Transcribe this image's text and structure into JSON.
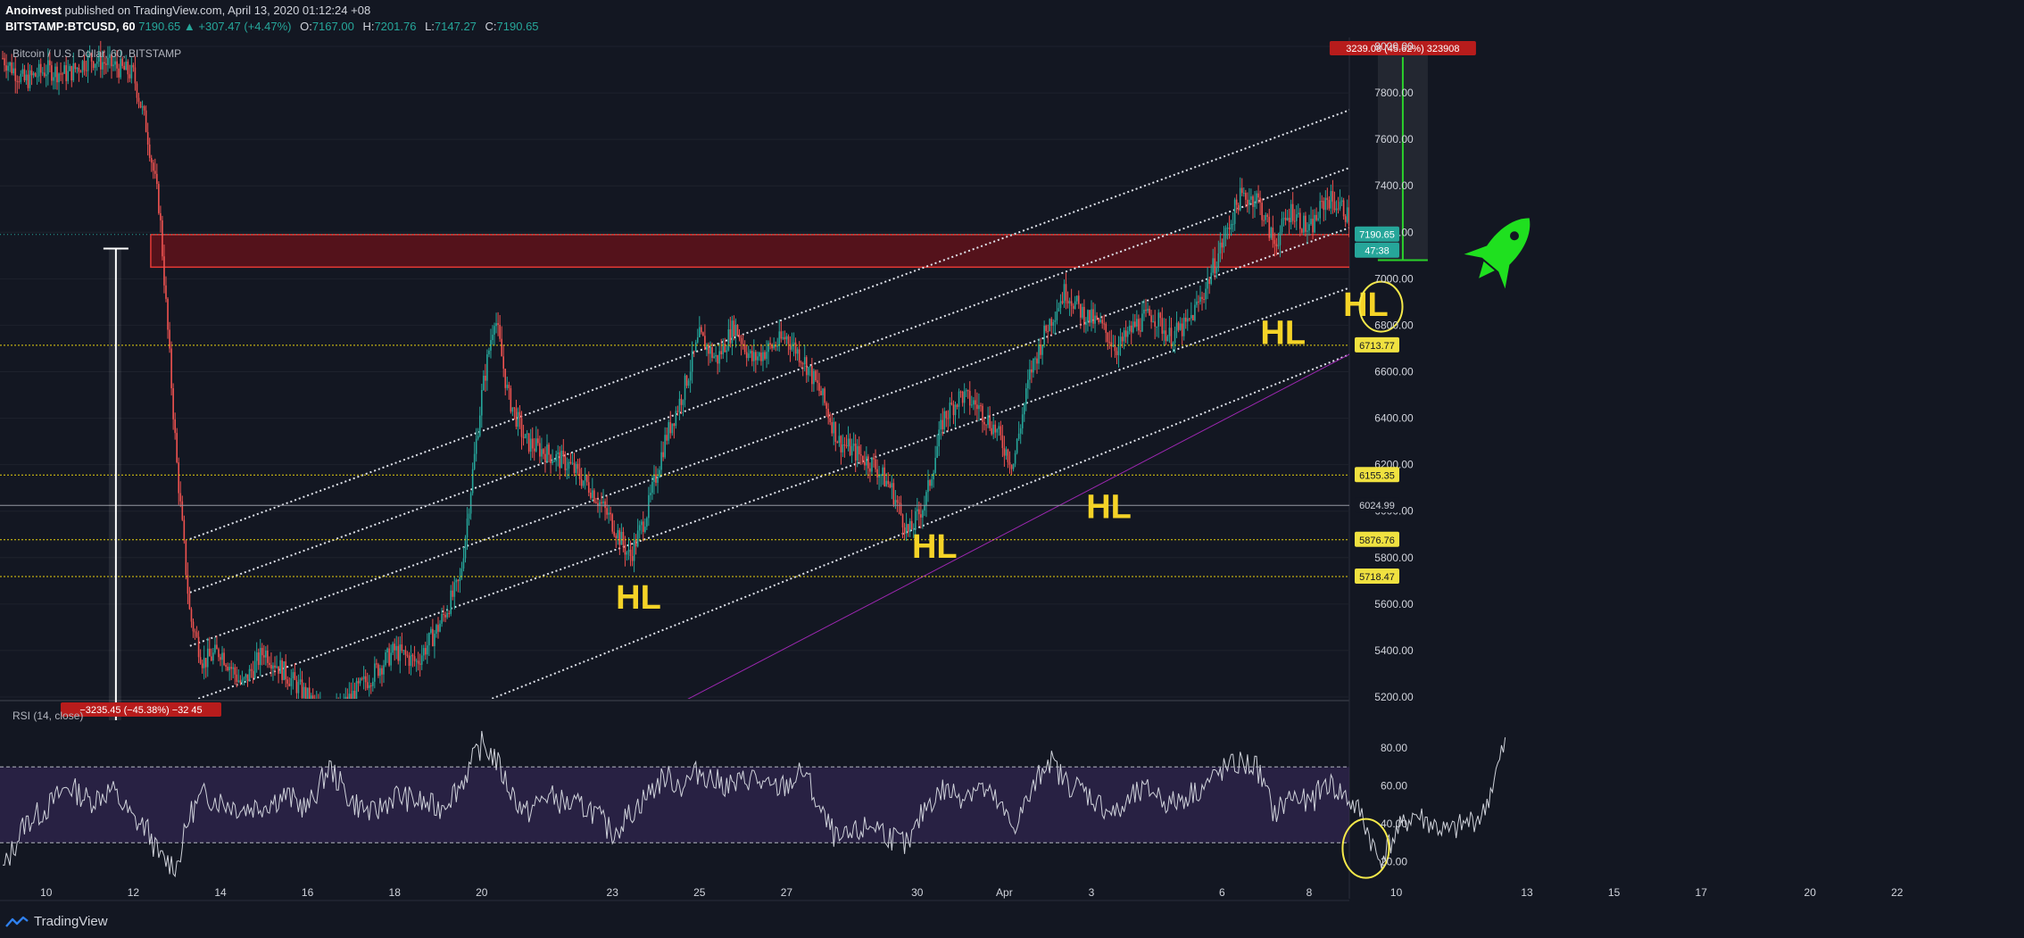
{
  "header": {
    "author": "Anoinvest",
    "published": "published on TradingView.com, April 13, 2020 01:12:24 +08",
    "symbol": "BITSTAMP:BTCUSD, 60",
    "last": "7190.65",
    "change": "▲ +307.47 (+4.47%)",
    "open_label": "O:",
    "open": "7167.00",
    "high_label": "H:",
    "high": "7201.76",
    "low_label": "L:",
    "low": "7147.27",
    "close_label": "C:",
    "close": "7190.65"
  },
  "footer": {
    "brand": "TradingView"
  },
  "colors": {
    "background": "#131722",
    "up": "#26a69a",
    "down": "#ef5350",
    "zone": "#8b0e16",
    "hl": "#f5d327",
    "rocket": "#1fe01f",
    "rsi": "#cfd2da",
    "rsi_band": "#3a2a5e"
  },
  "chart_data": [
    {
      "type": "candlestick",
      "title": "Bitcoin / U.S. Dollar, 60, BITSTAMP",
      "x_ticks": [
        "10",
        "12",
        "14",
        "16",
        "18",
        "20",
        "23",
        "25",
        "27",
        "30",
        "Apr",
        "3",
        "6",
        "8",
        "10",
        "13",
        "15",
        "17",
        "20",
        "22"
      ],
      "y_ticks": [
        5200,
        5400,
        5600,
        5800,
        6000,
        6200,
        6400,
        6600,
        6800,
        7000,
        7200,
        7400,
        7600,
        7800,
        8000
      ],
      "ylim": [
        5100,
        8030
      ],
      "path_x": [
        9.0,
        9.5,
        10,
        10.5,
        11,
        11.5,
        12,
        12.3,
        12.6,
        13,
        13.3,
        13.6,
        14,
        14.5,
        15,
        15.5,
        16,
        16.5,
        17,
        17.5,
        18,
        18.5,
        19,
        19.5,
        20,
        20.3,
        20.6,
        21,
        21.5,
        22,
        22.5,
        23,
        23.4,
        23.8,
        24.2,
        24.6,
        25,
        25.4,
        25.8,
        26.2,
        26.6,
        27,
        27.4,
        27.8,
        28.2,
        28.6,
        29,
        29.4,
        29.8,
        30.2,
        30.6,
        31,
        31.4,
        31.8,
        32.2,
        32.6,
        33,
        33.4,
        33.8,
        34.2,
        34.6,
        35,
        35.4,
        35.8,
        36.2,
        36.6,
        37,
        37.4,
        37.8,
        38.2,
        38.6,
        39,
        39.4,
        39.8,
        40.2,
        40.6,
        41,
        41.4,
        41.8,
        42.2,
        42.6,
        43,
        43.5,
        44
      ],
      "path_y": [
        7950,
        7850,
        7900,
        7880,
        7950,
        7920,
        7880,
        7650,
        7300,
        6200,
        5550,
        5350,
        5400,
        5250,
        5400,
        5300,
        5200,
        5100,
        5200,
        5300,
        5400,
        5350,
        5500,
        5700,
        6500,
        6850,
        6500,
        6300,
        6250,
        6200,
        6100,
        5950,
        5800,
        6000,
        6300,
        6500,
        6750,
        6650,
        6800,
        6650,
        6700,
        6750,
        6650,
        6500,
        6300,
        6250,
        6200,
        6100,
        5900,
        6050,
        6400,
        6500,
        6450,
        6350,
        6200,
        6600,
        6800,
        6950,
        6850,
        6800,
        6700,
        6800,
        6850,
        6750,
        6800,
        6950,
        7150,
        7350,
        7350,
        7150,
        7300,
        7200,
        7350,
        7300,
        7150,
        6900,
        6900,
        6850,
        6800,
        6850,
        6820,
        6900,
        7190
      ],
      "annotations": {
        "hl_labels": [
          {
            "text": "HL",
            "x": 23.6,
            "y": 5580
          },
          {
            "text": "HL",
            "x": 30.4,
            "y": 5800
          },
          {
            "text": "HL",
            "x": 34.4,
            "y": 5970
          },
          {
            "text": "HL",
            "x": 38.4,
            "y": 6720
          },
          {
            "text": "HL",
            "x": 40.3,
            "y": 6840
          }
        ],
        "resistance_zone": {
          "from_x": 12.4,
          "to_x": 43.3,
          "y_low": 7050,
          "y_high": 7190
        },
        "price_lines": [
          {
            "value": 6713.77,
            "label": "6713.77"
          },
          {
            "value": 6155.35,
            "label": "6155.35"
          },
          {
            "value": 5876.76,
            "label": "5876.76"
          },
          {
            "value": 5718.47,
            "label": "5718.47"
          }
        ],
        "reference_line": {
          "value": 6024.99,
          "label": "6024.99"
        },
        "last_price": {
          "value": 7190.65,
          "label": "7190.65",
          "countdown": "47:38"
        },
        "measure_top": {
          "label": "3239.08 (45.62%) 323908",
          "x": 41.15,
          "y_from": 7080,
          "y_to": 8000
        },
        "measure_bottom": {
          "label": "−3235.45 (−45.38%) −32 45",
          "x": 11.6,
          "y_from": 5100,
          "y_to": 7130
        },
        "channel_lines": [
          {
            "x1": 13.3,
            "y1": 5880,
            "x2": 42.0,
            "y2": 7870
          },
          {
            "x1": 13.3,
            "y1": 5650,
            "x2": 42.0,
            "y2": 7620
          },
          {
            "x1": 13.3,
            "y1": 5420,
            "x2": 42.0,
            "y2": 7360
          },
          {
            "x1": 13.3,
            "y1": 5180,
            "x2": 42.0,
            "y2": 7100
          },
          {
            "x1": 19.0,
            "y1": 5100,
            "x2": 42.0,
            "y2": 6830
          }
        ],
        "trend_line": {
          "x1": 23.8,
          "y1": 5100,
          "x2": 53.8,
          "y2": 8030
        },
        "yellow_circle": {
          "x": 40.65,
          "y": 6880
        }
      }
    },
    {
      "type": "line",
      "title": "RSI (14, close)",
      "y_ticks": [
        20,
        40,
        60,
        80
      ],
      "ylim": [
        8,
        90
      ],
      "bands": [
        30,
        70
      ],
      "path_x": [
        9.0,
        9.5,
        10,
        10.5,
        11,
        11.5,
        12,
        12.3,
        12.6,
        13,
        13.3,
        13.6,
        14,
        14.5,
        15,
        15.5,
        16,
        16.5,
        17,
        17.5,
        18,
        18.5,
        19,
        19.5,
        20,
        20.3,
        20.6,
        21,
        21.5,
        22,
        22.5,
        23,
        23.4,
        23.8,
        24.2,
        24.6,
        25,
        25.4,
        25.8,
        26.2,
        26.6,
        27,
        27.4,
        27.8,
        28.2,
        28.6,
        29,
        29.4,
        29.8,
        30.2,
        30.6,
        31,
        31.4,
        31.8,
        32.2,
        32.6,
        33,
        33.4,
        33.8,
        34.2,
        34.6,
        35,
        35.4,
        35.8,
        36.2,
        36.6,
        37,
        37.4,
        37.8,
        38.2,
        38.6,
        39,
        39.4,
        39.8,
        40.2,
        40.6,
        41,
        41.4,
        41.8,
        42.2,
        42.6,
        43,
        43.5,
        44
      ],
      "path_y": [
        15,
        40,
        48,
        60,
        52,
        58,
        42,
        38,
        22,
        18,
        45,
        55,
        52,
        48,
        50,
        55,
        48,
        70,
        52,
        45,
        55,
        52,
        48,
        60,
        82,
        75,
        60,
        45,
        55,
        50,
        48,
        35,
        45,
        55,
        65,
        60,
        68,
        62,
        60,
        65,
        58,
        60,
        68,
        45,
        30,
        35,
        40,
        33,
        28,
        50,
        58,
        55,
        60,
        52,
        38,
        55,
        75,
        62,
        58,
        50,
        45,
        55,
        58,
        50,
        55,
        60,
        68,
        72,
        70,
        45,
        55,
        50,
        62,
        55,
        45,
        20,
        35,
        45,
        40,
        35,
        40,
        45,
        82
      ],
      "annotations": {
        "yellow_circle": {
          "x": 40.3,
          "y": 27
        }
      }
    }
  ]
}
